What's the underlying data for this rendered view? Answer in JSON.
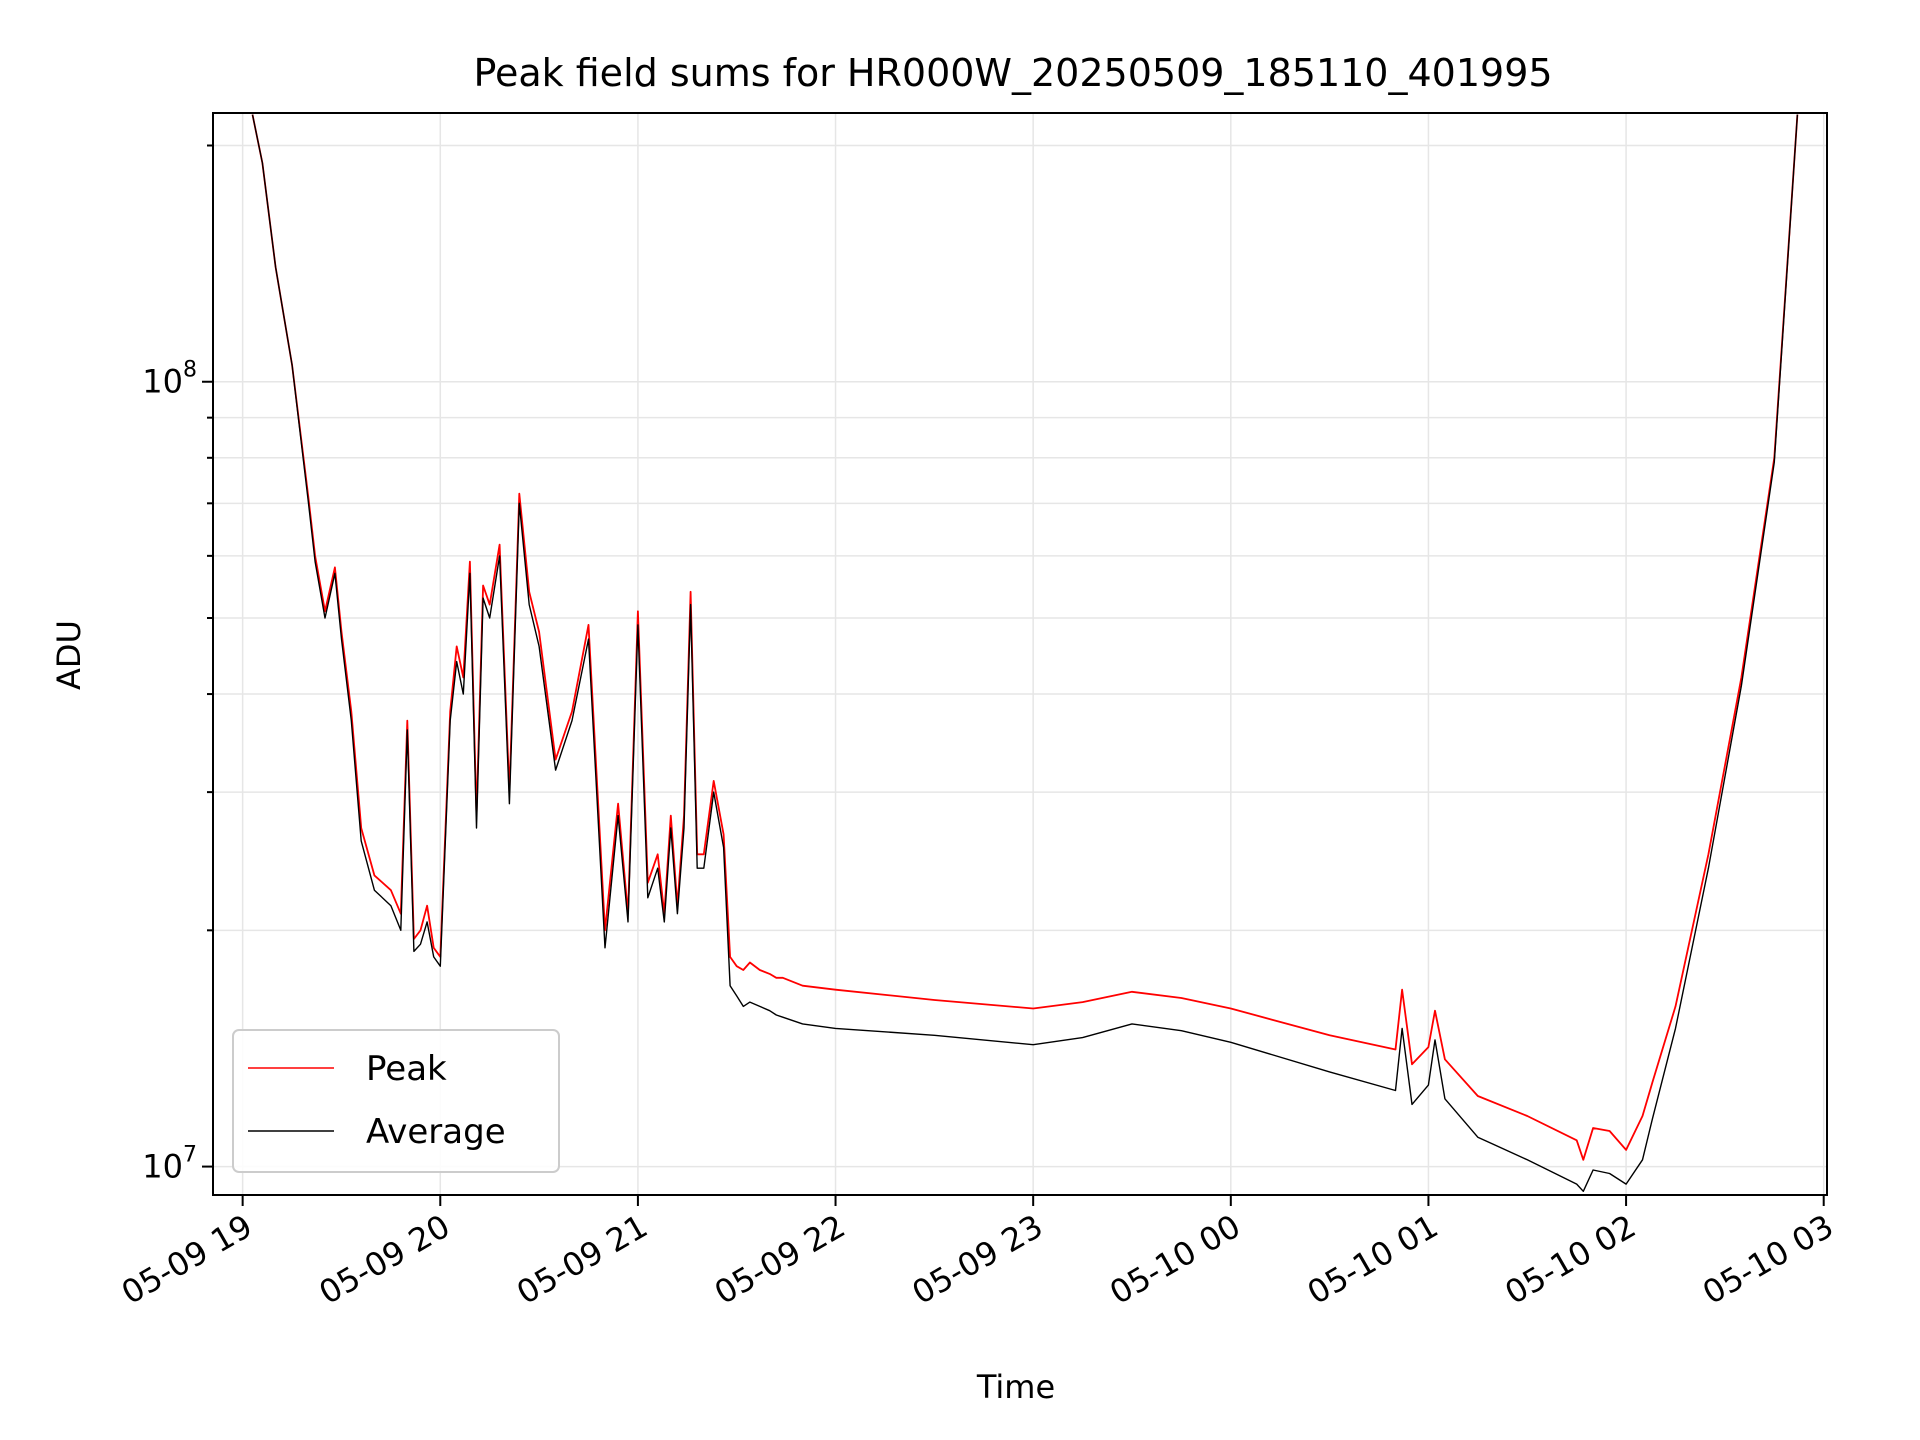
{
  "chart_data": {
    "type": "line",
    "title": "Peak field sums for HR000W_20250509_185110_401995",
    "xlabel": "Time",
    "ylabel": "ADU",
    "yscale": "log",
    "ylim": [
      9200000,
      220000000
    ],
    "xlim": [
      "05-09 18:51",
      "05-10 03:01"
    ],
    "grid": true,
    "legend": "lower-left",
    "x_ticks": [
      {
        "time": "05-09 19:00",
        "label": "05-09 19"
      },
      {
        "time": "05-09 20:00",
        "label": "05-09 20"
      },
      {
        "time": "05-09 21:00",
        "label": "05-09 21"
      },
      {
        "time": "05-09 22:00",
        "label": "05-09 22"
      },
      {
        "time": "05-09 23:00",
        "label": "05-09 23"
      },
      {
        "time": "05-10 00:00",
        "label": "05-10 00"
      },
      {
        "time": "05-10 01:00",
        "label": "05-10 01"
      },
      {
        "time": "05-10 02:00",
        "label": "05-10 02"
      },
      {
        "time": "05-10 03:00",
        "label": "05-10 03"
      }
    ],
    "y_ticks": [
      {
        "value": 10000000,
        "base": "10",
        "exp": "7"
      },
      {
        "value": 100000000,
        "base": "10",
        "exp": "8"
      }
    ],
    "x": [
      "05-09 19:03",
      "05-09 19:06",
      "05-09 19:10",
      "05-09 19:15",
      "05-09 19:20",
      "05-09 19:22",
      "05-09 19:25",
      "05-09 19:28",
      "05-09 19:30",
      "05-09 19:33",
      "05-09 19:36",
      "05-09 19:40",
      "05-09 19:45",
      "05-09 19:48",
      "05-09 19:50",
      "05-09 19:52",
      "05-09 19:54",
      "05-09 19:56",
      "05-09 19:58",
      "05-09 20:00",
      "05-09 20:03",
      "05-09 20:05",
      "05-09 20:07",
      "05-09 20:09",
      "05-09 20:11",
      "05-09 20:13",
      "05-09 20:15",
      "05-09 20:18",
      "05-09 20:21",
      "05-09 20:24",
      "05-09 20:27",
      "05-09 20:30",
      "05-09 20:35",
      "05-09 20:40",
      "05-09 20:45",
      "05-09 20:50",
      "05-09 20:54",
      "05-09 20:57",
      "05-09 21:00",
      "05-09 21:03",
      "05-09 21:06",
      "05-09 21:08",
      "05-09 21:10",
      "05-09 21:12",
      "05-09 21:14",
      "05-09 21:16",
      "05-09 21:18",
      "05-09 21:20",
      "05-09 21:23",
      "05-09 21:26",
      "05-09 21:28",
      "05-09 21:30",
      "05-09 21:32",
      "05-09 21:34",
      "05-09 21:37",
      "05-09 21:40",
      "05-09 21:42",
      "05-09 21:44",
      "05-09 21:50",
      "05-09 22:00",
      "05-09 22:30",
      "05-09 23:00",
      "05-09 23:15",
      "05-09 23:30",
      "05-09 23:45",
      "05-10 00:00",
      "05-10 00:30",
      "05-10 00:50",
      "05-10 00:52",
      "05-10 00:55",
      "05-10 01:00",
      "05-10 01:02",
      "05-10 01:05",
      "05-10 01:15",
      "05-10 01:30",
      "05-10 01:45",
      "05-10 01:47",
      "05-10 01:50",
      "05-10 01:55",
      "05-10 02:00",
      "05-10 02:05",
      "05-10 02:08",
      "05-10 02:15",
      "05-10 02:25",
      "05-10 02:35",
      "05-10 02:45",
      "05-10 02:52"
    ],
    "series": [
      {
        "name": "Peak",
        "color": "#ff0000",
        "values": [
          219000000,
          190000000,
          140000000,
          105000000,
          71000000,
          60000000,
          51000000,
          58000000,
          48000000,
          38000000,
          27000000,
          23500000,
          22500000,
          21000000,
          37000000,
          19500000,
          20000000,
          21500000,
          19000000,
          18500000,
          38000000,
          46000000,
          42000000,
          59000000,
          28000000,
          55000000,
          52000000,
          62000000,
          30000000,
          72000000,
          54000000,
          48000000,
          33000000,
          38000000,
          49000000,
          20000000,
          29000000,
          21000000,
          51000000,
          23000000,
          25000000,
          21000000,
          28000000,
          21500000,
          28000000,
          54000000,
          25000000,
          25000000,
          31000000,
          26500000,
          18500000,
          18000000,
          17800000,
          18200000,
          17800000,
          17600000,
          17400000,
          17400000,
          17000000,
          16800000,
          16300000,
          15900000,
          16200000,
          16700000,
          16400000,
          15900000,
          14700000,
          14100000,
          16800000,
          13500000,
          14200000,
          15800000,
          13700000,
          12300000,
          11600000,
          10800000,
          10200000,
          11200000,
          11100000,
          10500000,
          11600000,
          12800000,
          16000000,
          25000000,
          42000000,
          80000000,
          219000000
        ]
      },
      {
        "name": "Average",
        "color": "#000000",
        "values": [
          219000000,
          190000000,
          140000000,
          105000000,
          70000000,
          59000000,
          50000000,
          57000000,
          47000000,
          37000000,
          26000000,
          22500000,
          21500000,
          20000000,
          36000000,
          18800000,
          19200000,
          20500000,
          18500000,
          18000000,
          37000000,
          44000000,
          40000000,
          57000000,
          27000000,
          53000000,
          50000000,
          60000000,
          29000000,
          70000000,
          52000000,
          46000000,
          32000000,
          37000000,
          47000000,
          19000000,
          28000000,
          20500000,
          49000000,
          22000000,
          24000000,
          20500000,
          27000000,
          21000000,
          27000000,
          52000000,
          24000000,
          24000000,
          30000000,
          25500000,
          17000000,
          16500000,
          16000000,
          16200000,
          16000000,
          15800000,
          15600000,
          15500000,
          15200000,
          15000000,
          14700000,
          14300000,
          14600000,
          15200000,
          14900000,
          14400000,
          13200000,
          12500000,
          15000000,
          12000000,
          12700000,
          14500000,
          12200000,
          10900000,
          10200000,
          9500000,
          9300000,
          9900000,
          9800000,
          9500000,
          10200000,
          11500000,
          15000000,
          24000000,
          41000000,
          79000000,
          219000000
        ]
      }
    ]
  }
}
